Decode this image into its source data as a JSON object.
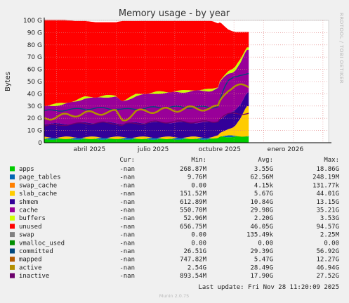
{
  "chart_data": {
    "type": "area",
    "title": "Memory usage - by year",
    "ylabel": "Bytes",
    "xlabel": "",
    "ylim": [
      0,
      100
    ],
    "y_unit": "G",
    "y_ticks": [
      "0",
      "10 G",
      "20 G",
      "30 G",
      "40 G",
      "50 G",
      "60 G",
      "70 G",
      "80 G",
      "90 G",
      "100 G"
    ],
    "x_ticks": [
      "abril 2025",
      "julio 2025",
      "octubre 2025",
      "enero 2026"
    ],
    "grid": true,
    "side_text": "RRDTOOL / TOBI OETIKER",
    "footer": "Munin 2.0.75",
    "last_update": "Last update: Fri Nov 28 11:20:09 2025",
    "legend_headers": {
      "cur": "Cur:",
      "min": "Min:",
      "avg": "Avg:",
      "max": "Max:"
    },
    "series": [
      {
        "name": "apps",
        "color": "#00cc00",
        "cur": "-nan",
        "min": "268.87M",
        "avg": "3.55G",
        "max": "18.86G"
      },
      {
        "name": "page_tables",
        "color": "#0066b3",
        "cur": "-nan",
        "min": "9.76M",
        "avg": "62.56M",
        "max": "248.19M"
      },
      {
        "name": "swap_cache",
        "color": "#ff8000",
        "cur": "-nan",
        "min": "0.00",
        "avg": "4.15k",
        "max": "131.77k"
      },
      {
        "name": "slab_cache",
        "color": "#ffcc00",
        "cur": "-nan",
        "min": "151.52M",
        "avg": "5.67G",
        "max": "44.01G"
      },
      {
        "name": "shmem",
        "color": "#330099",
        "cur": "-nan",
        "min": "612.89M",
        "avg": "10.84G",
        "max": "13.15G"
      },
      {
        "name": "cache",
        "color": "#990099",
        "cur": "-nan",
        "min": "550.70M",
        "avg": "29.98G",
        "max": "35.21G"
      },
      {
        "name": "buffers",
        "color": "#ccff00",
        "cur": "-nan",
        "min": "52.96M",
        "avg": "2.20G",
        "max": "3.53G"
      },
      {
        "name": "unused",
        "color": "#ff0000",
        "cur": "-nan",
        "min": "656.75M",
        "avg": "46.05G",
        "max": "94.57G"
      },
      {
        "name": "swap",
        "color": "#808080",
        "cur": "-nan",
        "min": "0.00",
        "avg": "135.49k",
        "max": "2.25M"
      },
      {
        "name": "vmalloc_used",
        "color": "#008f00",
        "cur": "-nan",
        "min": "0.00",
        "avg": "0.00",
        "max": "0.00"
      },
      {
        "name": "committed",
        "color": "#00487d",
        "cur": "-nan",
        "min": "26.51G",
        "avg": "29.39G",
        "max": "56.92G"
      },
      {
        "name": "mapped",
        "color": "#b35a00",
        "cur": "-nan",
        "min": "747.82M",
        "avg": "5.47G",
        "max": "12.27G"
      },
      {
        "name": "active",
        "color": "#b38f00",
        "cur": "-nan",
        "min": "2.54G",
        "avg": "28.49G",
        "max": "46.94G"
      },
      {
        "name": "inactive",
        "color": "#6b006b",
        "cur": "-nan",
        "min": "893.54M",
        "avg": "17.90G",
        "max": "27.52G"
      }
    ],
    "profile": {
      "x": [
        0,
        0.05,
        0.1,
        0.15,
        0.2,
        0.25,
        0.3,
        0.35,
        0.38,
        0.4,
        0.45,
        0.5,
        0.55,
        0.6,
        0.65,
        0.7,
        0.75,
        0.8,
        0.82,
        0.85,
        0.86,
        0.88,
        0.9,
        0.93,
        0.96,
        0.99,
        1
      ],
      "apps": [
        3,
        3,
        3,
        3,
        3,
        3,
        3,
        3,
        3,
        3,
        3,
        3,
        3,
        3,
        3,
        3,
        3,
        3,
        3,
        4,
        5,
        5,
        5,
        5,
        5,
        5,
        5
      ],
      "page_tables": [
        0.5,
        0.5,
        0.5,
        0.5,
        0.5,
        0.5,
        0.5,
        0.5,
        0.5,
        0.5,
        0.5,
        0.5,
        0.5,
        0.5,
        0.5,
        0.5,
        0.5,
        0.5,
        0.5,
        0.5,
        0.5,
        0.5,
        0.5,
        0.5,
        0.5,
        0.5,
        0.5
      ],
      "slab_cache": [
        1,
        1,
        1,
        1,
        1,
        1,
        1,
        1,
        1,
        1,
        1,
        1,
        1,
        1,
        1,
        1,
        1,
        1,
        1,
        1,
        2,
        4,
        6,
        8,
        14,
        24,
        24
      ],
      "shmem": [
        11,
        11,
        11,
        11,
        12,
        12,
        12,
        12,
        11,
        11,
        12,
        12,
        12,
        12,
        12,
        12,
        12,
        12,
        12,
        12,
        12,
        12,
        12,
        12,
        12,
        12,
        12
      ],
      "cache": [
        14,
        15,
        16,
        18,
        20,
        20,
        21,
        21,
        18,
        19,
        22,
        23,
        24,
        24,
        25,
        25,
        26,
        26,
        26,
        27,
        30,
        32,
        33,
        33,
        34,
        34,
        34
      ],
      "buffers": [
        1,
        1,
        1,
        1,
        1,
        1,
        1,
        1,
        1,
        1,
        1,
        1,
        1,
        1,
        1,
        1,
        1,
        1,
        1,
        1,
        2,
        2,
        2,
        2,
        3,
        3,
        3
      ],
      "unused": [
        70,
        69,
        68,
        65,
        62,
        61,
        60,
        60,
        65,
        64,
        60,
        59,
        58,
        58,
        57,
        57,
        56,
        56,
        56,
        52,
        47,
        40,
        34,
        30,
        22,
        12,
        12
      ],
      "committed": [
        26,
        26,
        27,
        27,
        28,
        28,
        28,
        28,
        27,
        27,
        28,
        28,
        29,
        29,
        29,
        29,
        29,
        29,
        29,
        30,
        36,
        44,
        50,
        54,
        56,
        56,
        56
      ],
      "active": [
        20,
        21,
        22,
        23,
        24,
        24,
        25,
        25,
        19,
        20,
        25,
        26,
        26,
        27,
        27,
        28,
        28,
        28,
        28,
        29,
        34,
        40,
        44,
        46,
        46,
        46,
        46
      ],
      "inactive": [
        14,
        14,
        15,
        15,
        16,
        16,
        16,
        16,
        14,
        15,
        16,
        16,
        17,
        17,
        17,
        17,
        17,
        17,
        17,
        18,
        20,
        22,
        23,
        24,
        24,
        24,
        24
      ]
    }
  }
}
